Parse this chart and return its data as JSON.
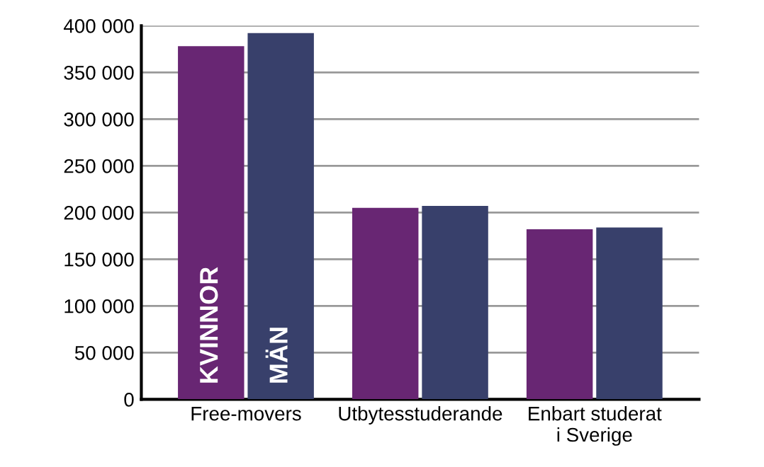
{
  "chart_data": {
    "type": "bar",
    "categories": [
      "Free-movers",
      "Utbytesstuderande",
      "Enbart studerat\ni Sverige"
    ],
    "series": [
      {
        "name": "KVINNOR",
        "color": "#682673",
        "values": [
          378000,
          205000,
          182000
        ]
      },
      {
        "name": "MÄN",
        "color": "#38406b",
        "values": [
          392000,
          207000,
          184000
        ]
      }
    ],
    "ylim": [
      0,
      400000
    ],
    "yticks": [
      0,
      {
        "value": 50000,
        "label": "50 000"
      },
      {
        "value": 100000,
        "label": "100 000"
      },
      {
        "value": 150000,
        "label": "150 000"
      },
      {
        "value": 200000,
        "label": "200 000"
      },
      {
        "value": 250000,
        "label": "250 000"
      },
      {
        "value": 300000,
        "label": "300 000"
      },
      {
        "value": 350000,
        "label": "350 000"
      },
      {
        "value": 400000,
        "label": "400 000"
      }
    ],
    "grid": "y",
    "legend": false
  }
}
